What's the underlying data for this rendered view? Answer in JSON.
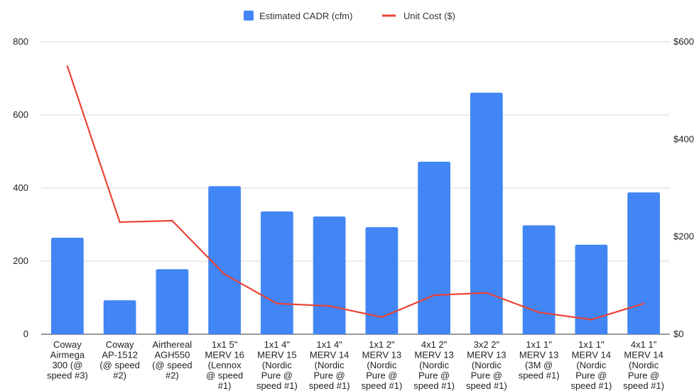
{
  "chart_data": {
    "type": "bar",
    "categories": [
      [
        "Coway",
        "Airmega",
        "300 (@",
        "speed #3)"
      ],
      [
        "Coway",
        "AP-1512",
        "(@ speed",
        "#2)"
      ],
      [
        "Airthereal",
        "AGH550",
        "(@ speed",
        "#2)"
      ],
      [
        "1x1 5\"",
        "MERV 16",
        "(Lennox",
        "@ speed",
        "#1)"
      ],
      [
        "1x1 4\"",
        "MERV 15",
        "(Nordic",
        "Pure @",
        "speed #1)"
      ],
      [
        "1x1 4\"",
        "MERV 14",
        "(Nordic",
        "Pure @",
        "speed #1)"
      ],
      [
        "1x1 2\"",
        "MERV 13",
        "(Nordic",
        "Pure @",
        "speed #1)"
      ],
      [
        "4x1 2\"",
        "MERV 13",
        "(Nordic",
        "Pure @",
        "speed #1)"
      ],
      [
        "3x2 2\"",
        "MERV 13",
        "(Nordic",
        "Pure @",
        "speed #1)"
      ],
      [
        "1x1 1\"",
        "MERV 13",
        "(3M @",
        "speed #1)"
      ],
      [
        "1x1 1\"",
        "MERV 14",
        "(Nordic",
        "Pure @",
        "speed #1)"
      ],
      [
        "4x1 1\"",
        "MERV 14",
        "(Nordic",
        "Pure @",
        "speed #1)"
      ]
    ],
    "series": [
      {
        "name": "Estimated CADR (cfm)",
        "type": "bar",
        "axis": "left",
        "color": "#4285f4",
        "values": [
          264,
          93,
          178,
          405,
          336,
          322,
          293,
          472,
          661,
          298,
          245,
          388
        ]
      },
      {
        "name": "Unit Cost ($)",
        "type": "line",
        "axis": "right",
        "color": "#ea4335",
        "values": [
          550,
          230,
          233,
          123,
          63,
          58,
          35,
          80,
          85,
          45,
          30,
          63
        ]
      }
    ],
    "left_axis": {
      "ticks": [
        "0",
        "200",
        "400",
        "600",
        "800"
      ],
      "range": [
        0,
        800
      ]
    },
    "right_axis": {
      "ticks": [
        "$0",
        "$200",
        "$400",
        "$600"
      ],
      "range": [
        0,
        600
      ]
    },
    "grid": true,
    "legend_position": "top"
  }
}
